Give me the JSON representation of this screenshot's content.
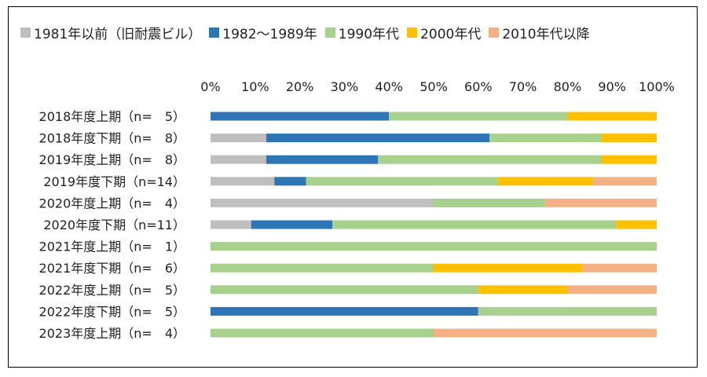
{
  "chart_data": {
    "type": "bar",
    "orientation": "horizontal",
    "stacked": true,
    "percent": true,
    "title": "",
    "xlabel": "",
    "ylabel": "",
    "xlim": [
      0,
      100
    ],
    "x_ticks": [
      "0%",
      "10%",
      "20%",
      "30%",
      "40%",
      "50%",
      "60%",
      "70%",
      "80%",
      "90%",
      "100%"
    ],
    "x_axis_position": "top",
    "grid": false,
    "legend_position": "top-left",
    "categories": [
      "2018年度上期（n=　5）",
      "2018年度下期（n=　8）",
      "2019年度上期（n=　8）",
      "2019年度下期（n=14）",
      "2020年度上期（n=　4）",
      "2020年度下期（n=11）",
      "2021年度上期（n=　1）",
      "2021年度下期（n=　6）",
      "2022年度上期（n=　5）",
      "2022年度下期（n=　5）",
      "2023年度上期（n=　4）"
    ],
    "series": [
      {
        "name": "1981年以前（旧耐震ビル）",
        "color": "#bfbfbf",
        "values": [
          0,
          12.5,
          12.5,
          14.3,
          50,
          9.1,
          0,
          0,
          0,
          0,
          0
        ]
      },
      {
        "name": "1982～1989年",
        "color": "#2e75b6",
        "values": [
          40,
          50,
          25,
          7.1,
          0,
          18.2,
          0,
          0,
          0,
          60,
          0
        ]
      },
      {
        "name": "1990年代",
        "color": "#a9d18e",
        "values": [
          40,
          25,
          50,
          42.9,
          25,
          63.6,
          100,
          50,
          60,
          40,
          50
        ]
      },
      {
        "name": "2000年代",
        "color": "#ffc000",
        "values": [
          20,
          12.5,
          12.5,
          21.4,
          0,
          9.1,
          0,
          33.3,
          20,
          0,
          0
        ]
      },
      {
        "name": "2010年代以降",
        "color": "#f4b183",
        "values": [
          0,
          0,
          0,
          14.3,
          25,
          0,
          0,
          16.7,
          20,
          0,
          50
        ]
      }
    ]
  }
}
